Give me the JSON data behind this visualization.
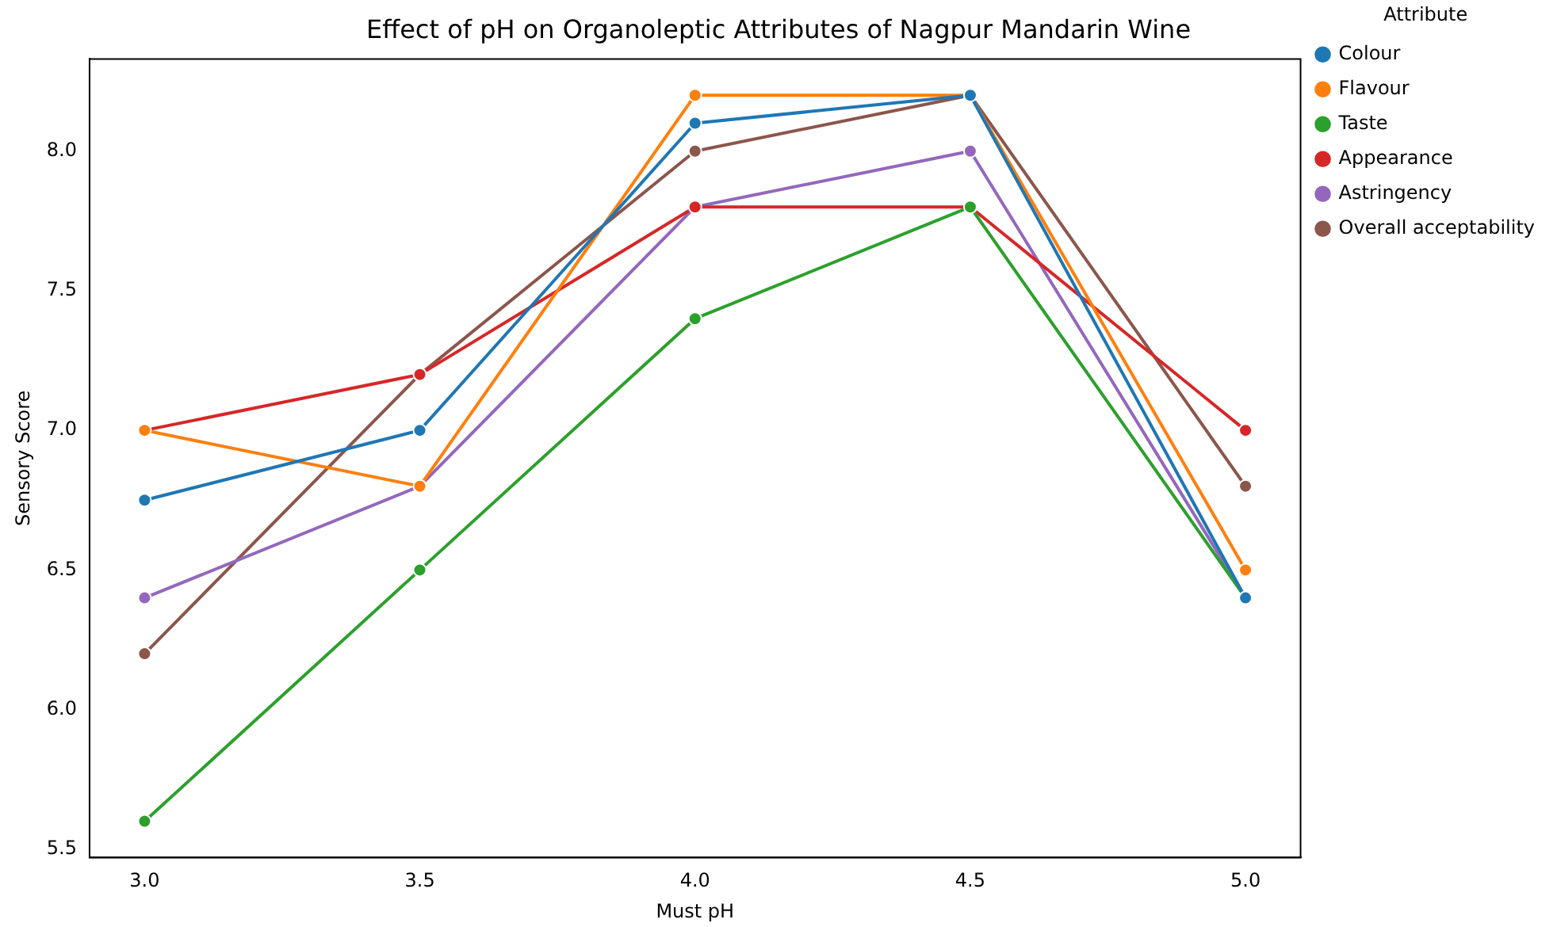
{
  "chart_data": {
    "type": "line",
    "title": "Effect of pH on Organoleptic Attributes of Nagpur Mandarin Wine",
    "xlabel": "Must pH",
    "ylabel": "Sensory Score",
    "legend_title": "Attribute",
    "x": [
      3.0,
      3.5,
      4.0,
      4.5,
      5.0
    ],
    "series": [
      {
        "name": "Colour",
        "color": "#1f77b4",
        "values": [
          6.75,
          7.0,
          8.1,
          8.2,
          6.4
        ]
      },
      {
        "name": "Flavour",
        "color": "#ff7f0e",
        "values": [
          7.0,
          6.8,
          8.2,
          8.2,
          6.5
        ]
      },
      {
        "name": "Taste",
        "color": "#2ca02c",
        "values": [
          5.6,
          6.5,
          7.4,
          7.8,
          6.4
        ]
      },
      {
        "name": "Appearance",
        "color": "#d62728",
        "values": [
          7.0,
          7.2,
          7.8,
          7.8,
          7.0
        ]
      },
      {
        "name": "Astringency",
        "color": "#9467bd",
        "values": [
          6.4,
          6.8,
          7.8,
          8.0,
          6.4
        ]
      },
      {
        "name": "Overall acceptability",
        "color": "#8c564b",
        "values": [
          6.2,
          7.2,
          8.0,
          8.2,
          6.8
        ]
      }
    ],
    "xlim": [
      2.9,
      5.1
    ],
    "xticks": [
      {
        "value": 3,
        "label": "3.0"
      },
      {
        "value": 3.5,
        "label": "3.5"
      },
      {
        "value": 4,
        "label": "4.0"
      },
      {
        "value": 4.5,
        "label": "4.5"
      },
      {
        "value": 5,
        "label": "5.0"
      }
    ],
    "ylim": [
      5.47,
      8.33
    ],
    "yticks": [
      5.5,
      {
        "value": 6,
        "label": "6.0"
      },
      6.5,
      {
        "value": 7,
        "label": "7.0"
      },
      7.5,
      {
        "value": 8,
        "label": "8.0"
      }
    ],
    "grid": false,
    "legend": "top right",
    "marker": "circle",
    "line_style": "solid"
  }
}
